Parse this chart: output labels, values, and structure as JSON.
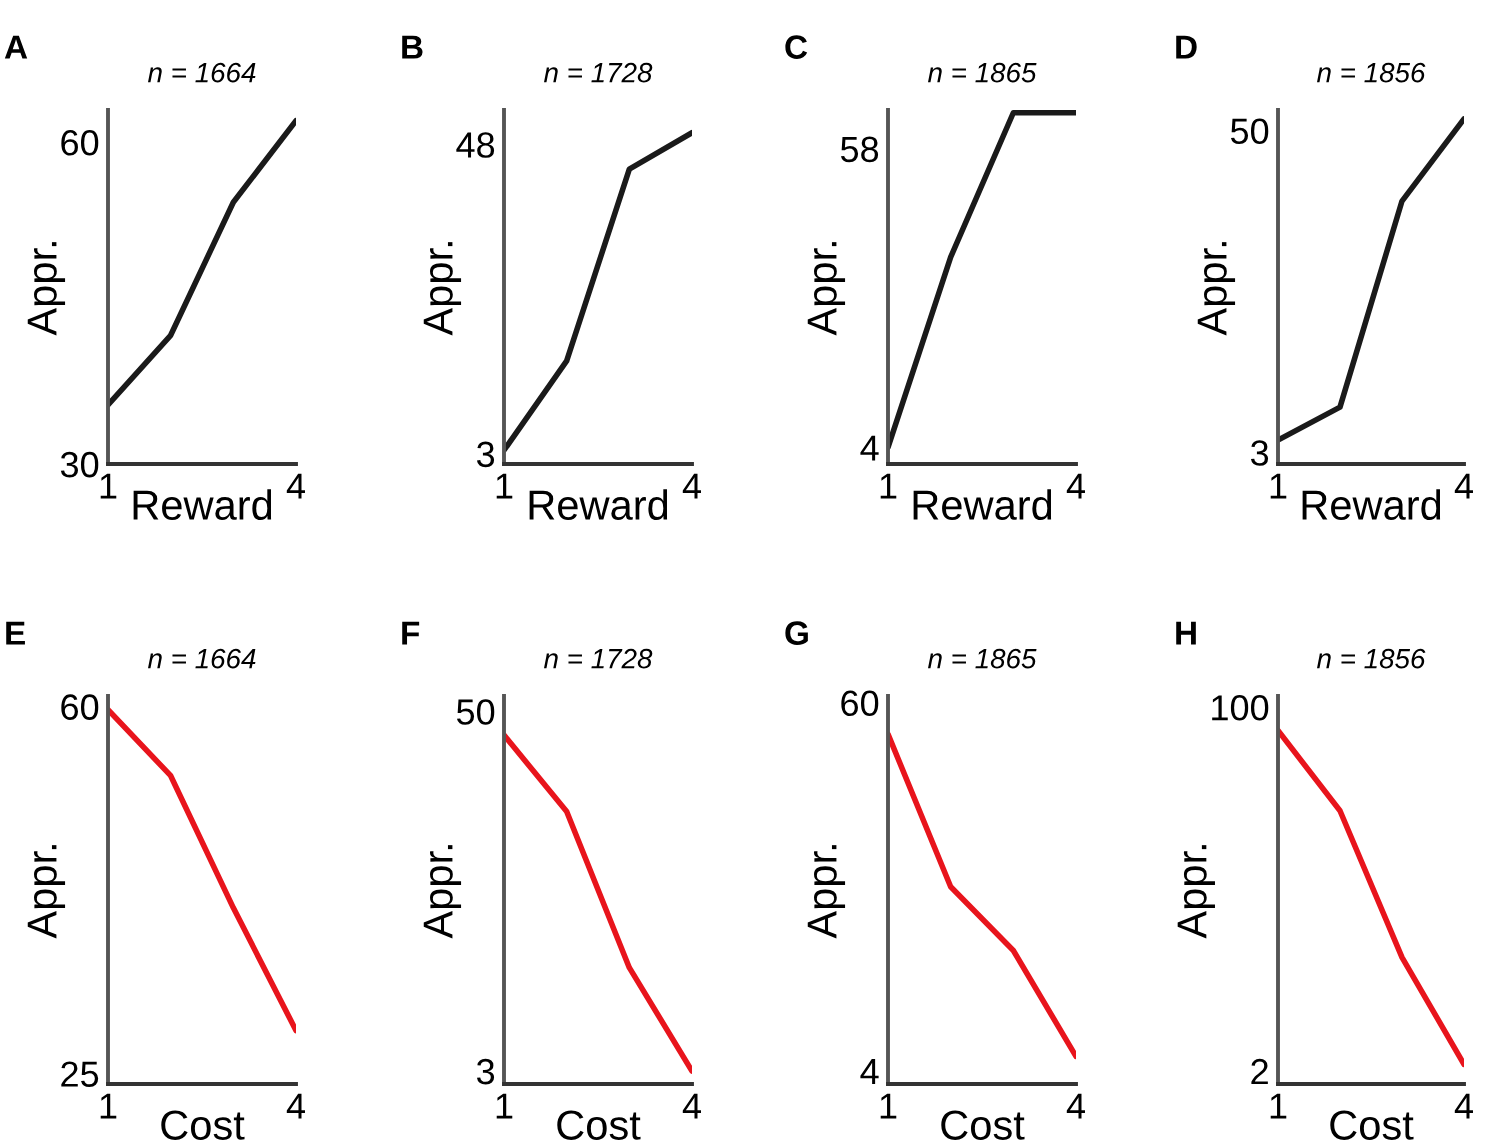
{
  "chart_data": [
    {
      "type": "line",
      "annotations": [
        "A"
      ],
      "title": "n = 1664",
      "xlabel": "Reward",
      "ylabel": "Appr.",
      "x": [
        1,
        2,
        3,
        4
      ],
      "xlim": [
        1,
        4
      ],
      "xticks": [
        1,
        4
      ],
      "ylim": [
        30,
        63
      ],
      "yticks": [
        30,
        60
      ],
      "grid": false,
      "series": [
        {
          "color": "#1a1a1a",
          "values": [
            35.5,
            42,
            54.4,
            62
          ]
        }
      ]
    },
    {
      "type": "line",
      "annotations": [
        "B"
      ],
      "title": "n = 1728",
      "xlabel": "Reward",
      "ylabel": "Appr.",
      "x": [
        1,
        2,
        3,
        4
      ],
      "xlim": [
        1,
        4
      ],
      "xticks": [
        1,
        4
      ],
      "ylim": [
        1.5,
        53
      ],
      "yticks": [
        3,
        48
      ],
      "grid": false,
      "series": [
        {
          "color": "#1a1a1a",
          "values": [
            3.5,
            16.5,
            44.4,
            49.7
          ]
        }
      ]
    },
    {
      "type": "line",
      "annotations": [
        "C"
      ],
      "title": "n = 1865",
      "xlabel": "Reward",
      "ylabel": "Appr.",
      "x": [
        1,
        2,
        3,
        4
      ],
      "xlim": [
        1,
        4
      ],
      "xticks": [
        1,
        4
      ],
      "ylim": [
        1,
        65
      ],
      "yticks": [
        4,
        58
      ],
      "grid": false,
      "series": [
        {
          "color": "#1a1a1a",
          "values": [
            4,
            38.4,
            64.5,
            64.5
          ]
        }
      ]
    },
    {
      "type": "line",
      "annotations": [
        "D"
      ],
      "title": "n = 1856",
      "xlabel": "Reward",
      "ylabel": "Appr.",
      "x": [
        1,
        2,
        3,
        4
      ],
      "xlim": [
        1,
        4
      ],
      "xticks": [
        1,
        4
      ],
      "ylim": [
        1.3,
        53
      ],
      "yticks": [
        3,
        50
      ],
      "grid": false,
      "series": [
        {
          "color": "#1a1a1a",
          "values": [
            4.8,
            9.6,
            39.7,
            51.7
          ]
        }
      ]
    },
    {
      "type": "line",
      "annotations": [
        "E"
      ],
      "title": "n = 1664",
      "xlabel": "Cost",
      "ylabel": "Appr.",
      "x": [
        1,
        2,
        3,
        4
      ],
      "xlim": [
        1,
        4
      ],
      "xticks": [
        1,
        4
      ],
      "ylim": [
        24,
        61
      ],
      "yticks": [
        25,
        60
      ],
      "grid": false,
      "series": [
        {
          "color": "#e8141c",
          "values": [
            59.7,
            53.4,
            40.8,
            29.1
          ]
        }
      ]
    },
    {
      "type": "line",
      "annotations": [
        "F"
      ],
      "title": "n = 1728",
      "xlabel": "Cost",
      "ylabel": "Appr.",
      "x": [
        1,
        2,
        3,
        4
      ],
      "xlim": [
        1,
        4
      ],
      "xticks": [
        1,
        4
      ],
      "ylim": [
        1.3,
        52
      ],
      "yticks": [
        3,
        50
      ],
      "grid": false,
      "series": [
        {
          "color": "#e8141c",
          "values": [
            46.9,
            36.9,
            16.5,
            3
          ]
        }
      ]
    },
    {
      "type": "line",
      "annotations": [
        "G"
      ],
      "title": "n = 1865",
      "xlabel": "Cost",
      "ylabel": "Appr.",
      "x": [
        1,
        2,
        3,
        4
      ],
      "xlim": [
        1,
        4
      ],
      "xticks": [
        1,
        4
      ],
      "ylim": [
        2,
        61
      ],
      "yticks": [
        4,
        60
      ],
      "grid": false,
      "series": [
        {
          "color": "#e8141c",
          "values": [
            55.2,
            32,
            22.3,
            6.2
          ]
        }
      ]
    },
    {
      "type": "line",
      "annotations": [
        "H"
      ],
      "title": "n = 1856",
      "xlabel": "Cost",
      "ylabel": "Appr.",
      "x": [
        1,
        2,
        3,
        4
      ],
      "xlim": [
        1,
        4
      ],
      "xticks": [
        1,
        4
      ],
      "ylim": [
        -1.5,
        103
      ],
      "yticks": [
        2,
        100
      ],
      "grid": false,
      "series": [
        {
          "color": "#e8141c",
          "values": [
            93.7,
            72.1,
            32.6,
            3.8
          ]
        }
      ]
    }
  ]
}
